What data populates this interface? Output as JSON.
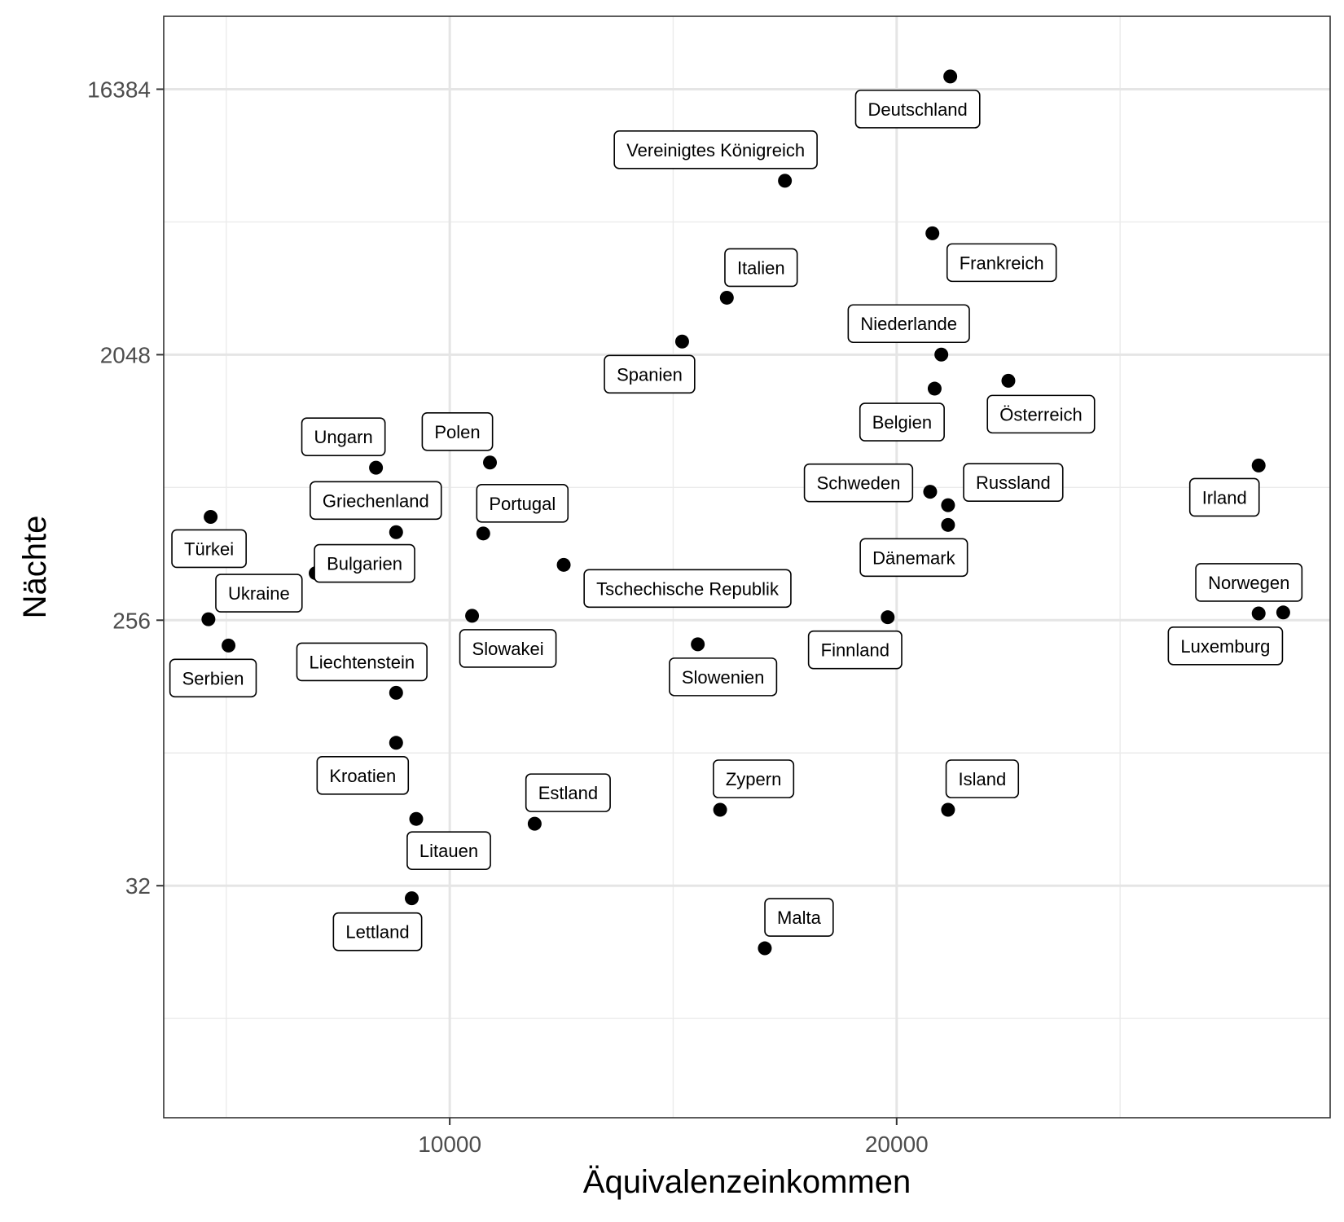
{
  "chart_data": {
    "type": "scatter",
    "title": "",
    "xlabel": "Äquivalenzeinkommen",
    "ylabel": "Nächte",
    "x_scale": "linear",
    "y_scale": "log2",
    "xlim": [
      3600,
      29700
    ],
    "ylim": [
      5.2,
      29000
    ],
    "x_ticks": [
      10000,
      20000
    ],
    "x_tick_labels": [
      "10000",
      "20000"
    ],
    "y_ticks": [
      32,
      256,
      2048,
      16384
    ],
    "y_tick_labels": [
      "32",
      "256",
      "2048",
      "16384"
    ],
    "grid": true,
    "legend": "none",
    "points": [
      {
        "label": "Deutschland",
        "x": 21200,
        "y": 18100
      },
      {
        "label": "Vereinigtes Königreich",
        "x": 17500,
        "y": 8000
      },
      {
        "label": "Frankreich",
        "x": 20800,
        "y": 5300
      },
      {
        "label": "Italien",
        "x": 16200,
        "y": 3200
      },
      {
        "label": "Spanien",
        "x": 15200,
        "y": 2270
      },
      {
        "label": "Niederlande",
        "x": 21000,
        "y": 2050
      },
      {
        "label": "Belgien",
        "x": 20850,
        "y": 1570
      },
      {
        "label": "Österreich",
        "x": 22500,
        "y": 1670
      },
      {
        "label": "Polen",
        "x": 10900,
        "y": 880
      },
      {
        "label": "Ungarn",
        "x": 8350,
        "y": 845
      },
      {
        "label": "Schweden",
        "x": 20750,
        "y": 700
      },
      {
        "label": "Russland",
        "x": 21150,
        "y": 630
      },
      {
        "label": "Dänemark",
        "x": 21150,
        "y": 540
      },
      {
        "label": "Irland",
        "x": 28100,
        "y": 860
      },
      {
        "label": "Türkei",
        "x": 4650,
        "y": 575
      },
      {
        "label": "Griechenland",
        "x": 8800,
        "y": 510
      },
      {
        "label": "Portugal",
        "x": 10750,
        "y": 505
      },
      {
        "label": "Bulgarien",
        "x": 7000,
        "y": 370
      },
      {
        "label": "Tschechische Republik",
        "x": 12550,
        "y": 395
      },
      {
        "label": "Slowakei",
        "x": 10500,
        "y": 265
      },
      {
        "label": "Ukraine",
        "x": 4600,
        "y": 258
      },
      {
        "label": "Finnland",
        "x": 19800,
        "y": 262
      },
      {
        "label": "Norwegen",
        "x": 28100,
        "y": 270
      },
      {
        "label": "Luxemburg",
        "x": 28650,
        "y": 272
      },
      {
        "label": "Serbien",
        "x": 5050,
        "y": 210
      },
      {
        "label": "Slowenien",
        "x": 15550,
        "y": 212
      },
      {
        "label": "Liechtenstein",
        "x": 8800,
        "y": 145
      },
      {
        "label": "Kroatien",
        "x": 8800,
        "y": 98
      },
      {
        "label": "Litauen",
        "x": 9250,
        "y": 54
      },
      {
        "label": "Estland",
        "x": 11900,
        "y": 52
      },
      {
        "label": "Zypern",
        "x": 16050,
        "y": 58
      },
      {
        "label": "Island",
        "x": 21150,
        "y": 58
      },
      {
        "label": "Lettland",
        "x": 9150,
        "y": 29
      },
      {
        "label": "Malta",
        "x": 17050,
        "y": 19.6
      }
    ]
  }
}
